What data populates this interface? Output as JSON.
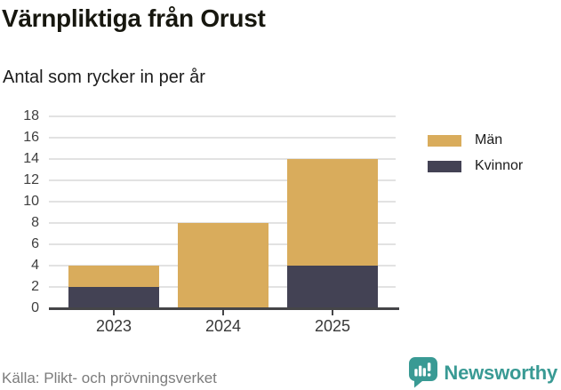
{
  "header": {
    "title": "Värnpliktiga från Orust",
    "subtitle": "Antal som rycker in per år"
  },
  "chart_data": {
    "type": "bar",
    "stacked": true,
    "title": "Värnpliktiga från Orust",
    "subtitle": "Antal som rycker in per år",
    "categories": [
      "2023",
      "2024",
      "2025"
    ],
    "series": [
      {
        "name": "Män",
        "color": "#d9ac5c",
        "values": [
          2,
          8,
          10
        ]
      },
      {
        "name": "Kvinnor",
        "color": "#434254",
        "values": [
          2,
          0,
          4
        ]
      }
    ],
    "stack_totals": [
      4,
      8,
      14
    ],
    "xlabel": "",
    "ylabel": "",
    "ylim": [
      0,
      18
    ],
    "yticks": [
      0,
      2,
      4,
      6,
      8,
      10,
      12,
      14,
      16,
      18
    ],
    "grid": true,
    "legend_position": "right"
  },
  "footer": {
    "source": "Källa: Plikt- och prövningsverket",
    "brand": "Newsworthy",
    "brand_color": "#399a94"
  }
}
